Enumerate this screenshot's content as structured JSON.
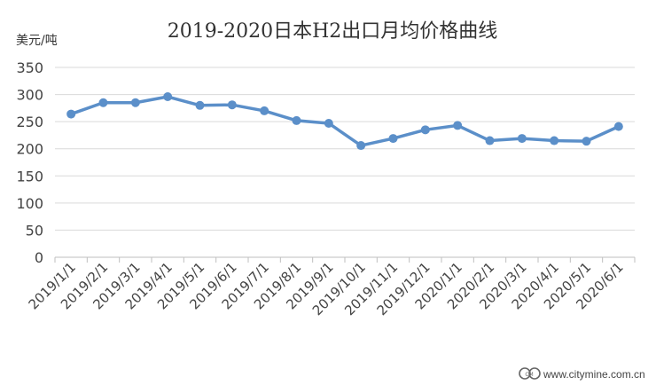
{
  "chart_data": {
    "type": "line",
    "title": "2019-2020日本H2出口月均价格曲线",
    "ylabel": "美元/吨",
    "xlabel": "",
    "ylim": [
      0,
      350
    ],
    "ytick_step": 50,
    "grid": true,
    "legend": "none",
    "categories": [
      "2019/1/1",
      "2019/2/1",
      "2019/3/1",
      "2019/4/1",
      "2019/5/1",
      "2019/6/1",
      "2019/7/1",
      "2019/8/1",
      "2019/9/1",
      "2019/10/1",
      "2019/11/1",
      "2019/12/1",
      "2020/1/1",
      "2020/2/1",
      "2020/3/1",
      "2020/4/1",
      "2020/5/1",
      "2020/6/1"
    ],
    "yticks": [
      "0",
      "50",
      "100",
      "150",
      "200",
      "250",
      "300",
      "350"
    ],
    "series": [
      {
        "values": [
          264,
          285,
          285,
          296,
          280,
          281,
          270,
          252,
          247,
          206,
          219,
          235,
          243,
          215,
          219,
          215,
          214,
          241
        ]
      }
    ],
    "colors": {
      "line": "#5b8fc9",
      "marker": "#5b8fc9",
      "grid": "#d9d9d9",
      "axis": "#bfbfbf"
    }
  },
  "watermark": {
    "logo_text": "CM",
    "url": "www.citymine.com.cn"
  }
}
